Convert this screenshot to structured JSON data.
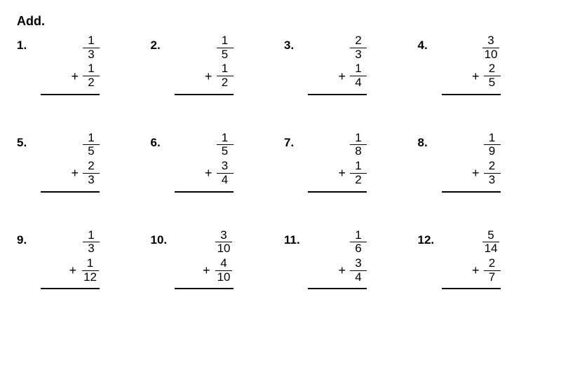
{
  "title": "Add.",
  "problems": [
    {
      "n": "1.",
      "a_num": "1",
      "a_den": "3",
      "b_num": "1",
      "b_den": "2"
    },
    {
      "n": "2.",
      "a_num": "1",
      "a_den": "5",
      "b_num": "1",
      "b_den": "2"
    },
    {
      "n": "3.",
      "a_num": "2",
      "a_den": "3",
      "b_num": "1",
      "b_den": "4"
    },
    {
      "n": "4.",
      "a_num": "3",
      "a_den": "10",
      "b_num": "2",
      "b_den": "5"
    },
    {
      "n": "5.",
      "a_num": "1",
      "a_den": "5",
      "b_num": "2",
      "b_den": "3"
    },
    {
      "n": "6.",
      "a_num": "1",
      "a_den": "5",
      "b_num": "3",
      "b_den": "4"
    },
    {
      "n": "7.",
      "a_num": "1",
      "a_den": "8",
      "b_num": "1",
      "b_den": "2"
    },
    {
      "n": "8.",
      "a_num": "1",
      "a_den": "9",
      "b_num": "2",
      "b_den": "3"
    },
    {
      "n": "9.",
      "a_num": "1",
      "a_den": "3",
      "b_num": "1",
      "b_den": "12"
    },
    {
      "n": "10.",
      "a_num": "3",
      "a_den": "10",
      "b_num": "4",
      "b_den": "10"
    },
    {
      "n": "11.",
      "a_num": "1",
      "a_den": "6",
      "b_num": "3",
      "b_den": "4"
    },
    {
      "n": "12.",
      "a_num": "5",
      "a_den": "14",
      "b_num": "2",
      "b_den": "7"
    }
  ],
  "plus": "+"
}
